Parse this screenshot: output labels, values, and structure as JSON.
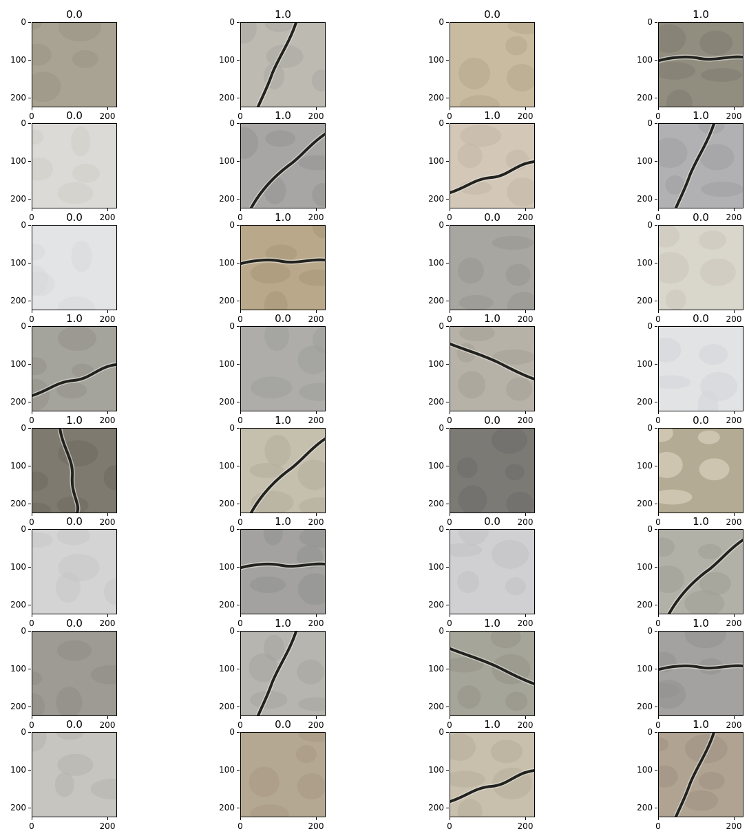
{
  "figure": {
    "y_tick_labels": [
      "0",
      "100",
      "200"
    ],
    "x_tick_labels": [
      "0",
      "200"
    ],
    "panels": [
      {
        "label": "0.0",
        "crack": false,
        "base": "#a9a393",
        "shade": "#9b9585"
      },
      {
        "label": "1.0",
        "crack": true,
        "base": "#bcbab1",
        "shade": "#a9a7a0"
      },
      {
        "label": "0.0",
        "crack": false,
        "base": "#c8bba0",
        "shade": "#b6a88a"
      },
      {
        "label": "1.0",
        "crack": true,
        "base": "#918e80",
        "shade": "#7f7c70"
      },
      {
        "label": "0.0",
        "crack": false,
        "base": "#dcdad6",
        "shade": "#cfcdc8"
      },
      {
        "label": "1.0",
        "crack": true,
        "base": "#a7a6a4",
        "shade": "#959492"
      },
      {
        "label": "1.0",
        "crack": true,
        "base": "#d3c8b8",
        "shade": "#c3b7a5"
      },
      {
        "label": "1.0",
        "crack": true,
        "base": "#b1b0b2",
        "shade": "#9f9ea0"
      },
      {
        "label": "0.0",
        "crack": false,
        "base": "#e3e4e6",
        "shade": "#d7d8da"
      },
      {
        "label": "1.0",
        "crack": true,
        "base": "#b9a98a",
        "shade": "#a89778"
      },
      {
        "label": "0.0",
        "crack": false,
        "base": "#a8a6a0",
        "shade": "#98968f"
      },
      {
        "label": "0.0",
        "crack": false,
        "base": "#d9d6cc",
        "shade": "#cbc7bc"
      },
      {
        "label": "1.0",
        "crack": true,
        "base": "#a4a39c",
        "shade": "#93928b"
      },
      {
        "label": "0.0",
        "crack": false,
        "base": "#aeadaa",
        "shade": "#9f9e9b"
      },
      {
        "label": "1.0",
        "crack": true,
        "base": "#b6b2a8",
        "shade": "#a5a196"
      },
      {
        "label": "0.0",
        "crack": false,
        "base": "#e1e3e5",
        "shade": "#d4d6d8"
      },
      {
        "label": "1.0",
        "crack": true,
        "base": "#7e7a6f",
        "shade": "#6d6a60"
      },
      {
        "label": "1.0",
        "crack": true,
        "base": "#c5bfae",
        "shade": "#b3ad9c"
      },
      {
        "label": "0.0",
        "crack": false,
        "base": "#7c7a75",
        "shade": "#6e6c67"
      },
      {
        "label": "0.0",
        "crack": false,
        "base": "#b3ab93",
        "shade": "#e2dac6"
      },
      {
        "label": "0.0",
        "crack": false,
        "base": "#d4d4d4",
        "shade": "#c7c7c7"
      },
      {
        "label": "1.0",
        "crack": true,
        "base": "#a3a2a0",
        "shade": "#92918f"
      },
      {
        "label": "0.0",
        "crack": false,
        "base": "#d0d0d2",
        "shade": "#c1c1c3"
      },
      {
        "label": "1.0",
        "crack": true,
        "base": "#b2b1a8",
        "shade": "#a19f96"
      },
      {
        "label": "0.0",
        "crack": false,
        "base": "#9e9b94",
        "shade": "#8f8c85"
      },
      {
        "label": "1.0",
        "crack": true,
        "base": "#b6b5b0",
        "shade": "#a5a49f"
      },
      {
        "label": "1.0",
        "crack": true,
        "base": "#a6a599",
        "shade": "#959488"
      },
      {
        "label": "1.0",
        "crack": true,
        "base": "#a4a2a0",
        "shade": "#93918f"
      },
      {
        "label": "0.0",
        "crack": false,
        "base": "#c7c5c0",
        "shade": "#b4b2ad"
      },
      {
        "label": "0.0",
        "crack": false,
        "base": "#b5a892",
        "shade": "#a59883"
      },
      {
        "label": "1.0",
        "crack": true,
        "base": "#c8bfad",
        "shade": "#b7ae9b"
      },
      {
        "label": "1.0",
        "crack": true,
        "base": "#b0a392",
        "shade": "#9f9282"
      }
    ]
  }
}
